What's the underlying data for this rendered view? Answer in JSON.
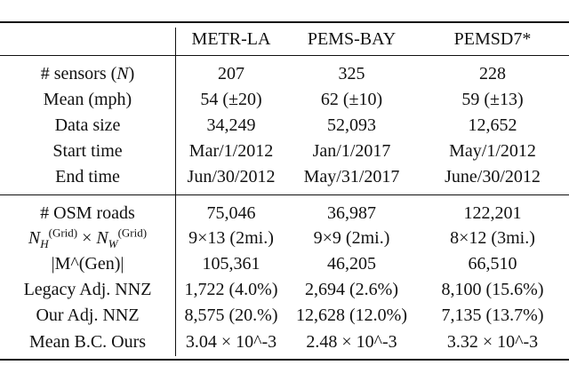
{
  "table": {
    "columns": [
      "",
      "METR-LA",
      "PEMS-BAY",
      "PEMSD7*"
    ],
    "section1": [
      {
        "label": "# sensors (N)",
        "values": [
          "207",
          "325",
          "228"
        ]
      },
      {
        "label": "Mean (mph)",
        "values": [
          "54 (±20)",
          "62 (±10)",
          "59 (±13)"
        ]
      },
      {
        "label": "Data size",
        "values": [
          "34,249",
          "52,093",
          "12,652"
        ]
      },
      {
        "label": "Start time",
        "values": [
          "Mar/1/2012",
          "Jan/1/2017",
          "May/1/2012"
        ]
      },
      {
        "label": "End time",
        "values": [
          "Jun/30/2012",
          "May/31/2017",
          "June/30/2012"
        ]
      }
    ],
    "section2": [
      {
        "label": "# OSM roads",
        "values": [
          "75,046",
          "36,987",
          "122,201"
        ]
      },
      {
        "label": "N_H^(Grid) × N_W^(Grid)",
        "values": [
          "9×13 (2mi.)",
          "9×9 (2mi.)",
          "8×12 (3mi.)"
        ]
      },
      {
        "label": "|M^(Gen)|",
        "values": [
          "105,361",
          "46,205",
          "66,510"
        ]
      },
      {
        "label": "Legacy Adj. NNZ",
        "values": [
          "1,722 (4.0%)",
          "2,694 (2.6%)",
          "8,100 (15.6%)"
        ]
      },
      {
        "label": "Our Adj. NNZ",
        "values": [
          "8,575 (20.%)",
          "12,628 (12.0%)",
          "7,135 (13.7%)"
        ]
      },
      {
        "label": "Mean B.C. Ours",
        "values": [
          "3.04 × 10^-3",
          "2.48 × 10^-3",
          "3.32 × 10^-3"
        ]
      }
    ],
    "sci": [
      {
        "mantissa": "3.04 × 10",
        "exp": "−3"
      },
      {
        "mantissa": "2.48 × 10",
        "exp": "−3"
      },
      {
        "mantissa": "3.32 × 10",
        "exp": "−3"
      }
    ]
  }
}
